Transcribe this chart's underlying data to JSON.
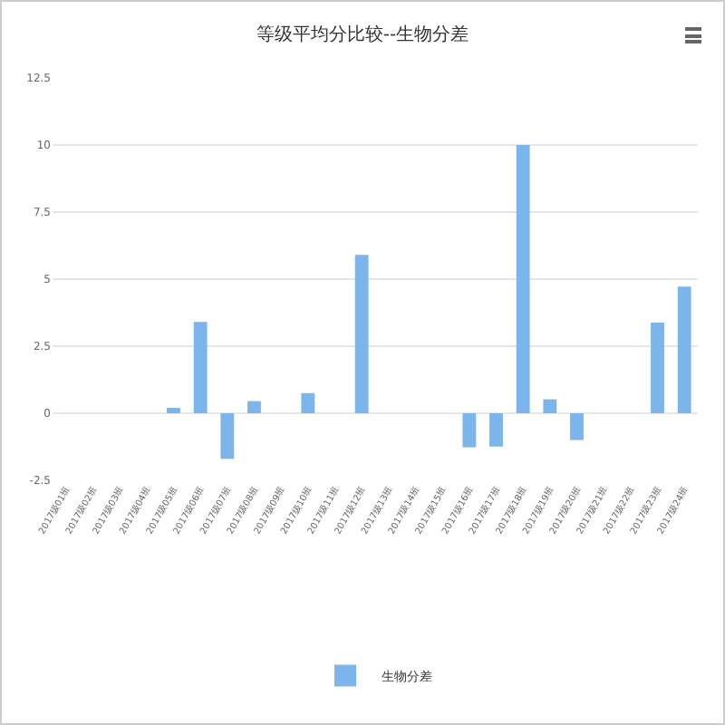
{
  "chart_data": {
    "type": "bar",
    "title": "等级平均分比较--生物分差",
    "categories": [
      "2017级01班",
      "2017级02班",
      "2017级03班",
      "2017级04班",
      "2017级05班",
      "2017级06班",
      "2017级07班",
      "2017级08班",
      "2017级09班",
      "2017级10班",
      "2017级11班",
      "2017级12班",
      "2017级13班",
      "2017级14班",
      "2017级15班",
      "2017级16班",
      "2017级17班",
      "2017级18班",
      "2017级19班",
      "2017级20班",
      "2017级21班",
      "2017级22班",
      "2017级23班",
      "2017级24班"
    ],
    "series": [
      {
        "name": "生物分差",
        "color": "#7cb5ec",
        "values": [
          null,
          null,
          null,
          null,
          0.2,
          3.4,
          -1.7,
          0.45,
          null,
          0.75,
          null,
          5.9,
          null,
          null,
          null,
          -1.27,
          -1.24,
          10,
          0.52,
          -1.0,
          null,
          null,
          3.38,
          4.72
        ]
      }
    ],
    "ylim": [
      -2.5,
      12.5
    ],
    "yticks": [
      -2.5,
      0,
      2.5,
      5,
      7.5,
      10,
      12.5
    ],
    "grid": "y",
    "legend": "bottom"
  }
}
